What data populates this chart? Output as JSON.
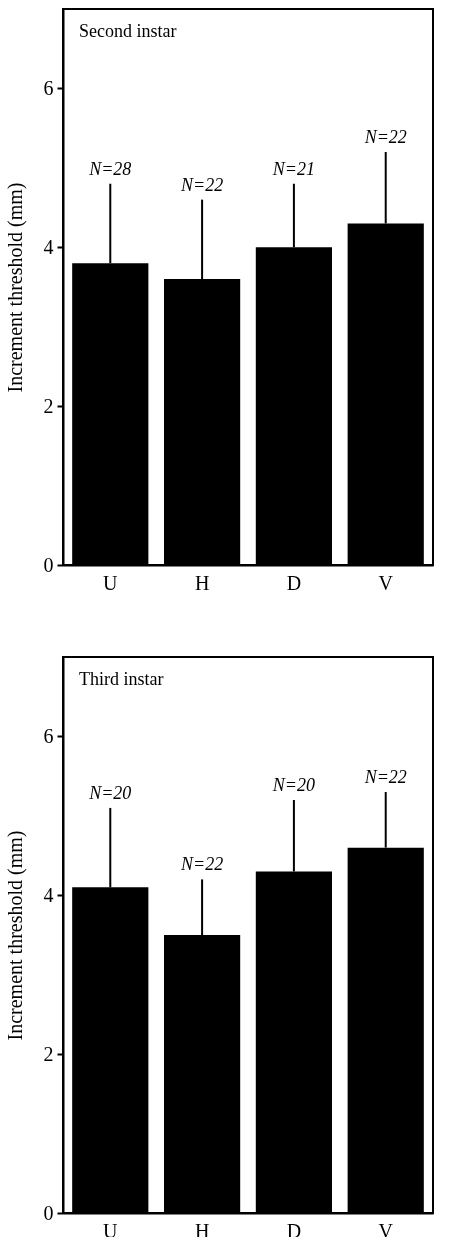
{
  "chart_data": [
    {
      "type": "bar",
      "title": "Second instar",
      "ylabel": "Increment threshold (mm)",
      "categories": [
        "U",
        "H",
        "D",
        "V"
      ],
      "values": [
        3.8,
        3.6,
        4.0,
        4.3
      ],
      "color": "#000000",
      "errors": [
        [
          3.8,
          4.8
        ],
        [
          3.6,
          4.6
        ],
        [
          4.0,
          4.8
        ],
        [
          4.3,
          5.2
        ]
      ],
      "annotations": [
        {
          "text": "N=28",
          "x": "U",
          "y": 4.8
        },
        {
          "text": "N=22",
          "x": "H",
          "y": 4.6
        },
        {
          "text": "N=21",
          "x": "D",
          "y": 4.8
        },
        {
          "text": "N=22",
          "x": "V",
          "y": 5.2
        }
      ],
      "ylim": [
        0,
        7
      ],
      "yticks": [
        0,
        2,
        4,
        6
      ],
      "grid": false
    },
    {
      "type": "bar",
      "title": "Third instar",
      "ylabel": "Increment threshold (mm)",
      "categories": [
        "U",
        "H",
        "D",
        "V"
      ],
      "values": [
        4.1,
        3.5,
        4.3,
        4.6
      ],
      "color": "#000000",
      "errors": [
        [
          4.1,
          5.1
        ],
        [
          3.5,
          4.2
        ],
        [
          4.3,
          5.2
        ],
        [
          4.6,
          5.3
        ]
      ],
      "annotations": [
        {
          "text": "N=20",
          "x": "U",
          "y": 5.1
        },
        {
          "text": "N=22",
          "x": "H",
          "y": 4.2
        },
        {
          "text": "N=20",
          "x": "D",
          "y": 5.2
        },
        {
          "text": "N=22",
          "x": "V",
          "y": 5.3
        }
      ],
      "ylim": [
        0,
        7
      ],
      "yticks": [
        0,
        2,
        4,
        6
      ],
      "grid": false
    }
  ]
}
